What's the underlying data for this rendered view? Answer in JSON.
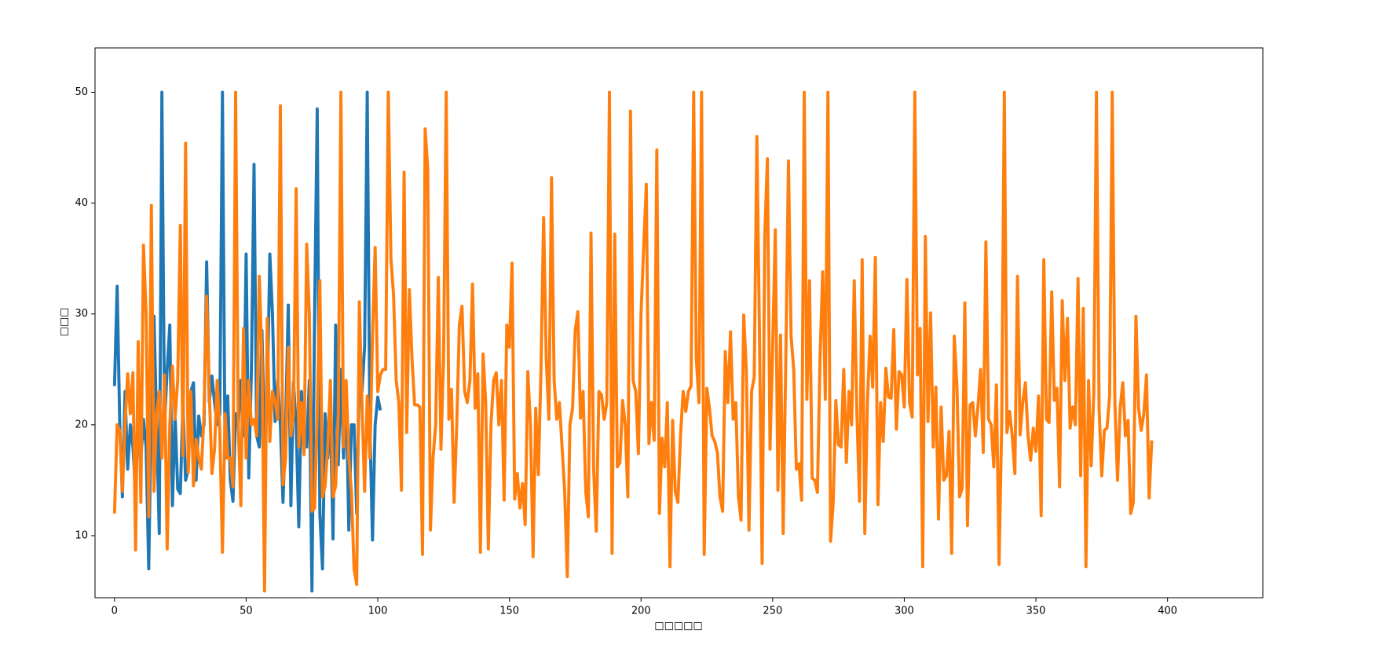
{
  "chart_data": {
    "type": "line",
    "xlabel": "□□□□□",
    "ylabel": "□□□",
    "xlim": [
      -7.4,
      436.2
    ],
    "xticks": [
      0,
      50,
      100,
      150,
      200,
      250,
      300,
      350,
      400
    ],
    "ylim": [
      4.4,
      54
    ],
    "yticks": [
      10,
      20,
      30,
      40,
      50
    ],
    "series": [
      {
        "color": "#1f77b4",
        "values": [
          23.5,
          32.5,
          20,
          13.5,
          23,
          16,
          20,
          18,
          14,
          20,
          17,
          20.5,
          18,
          7,
          22,
          29.8,
          20,
          10.2,
          50,
          20,
          25,
          29,
          12.7,
          21,
          14.2,
          13.8,
          22,
          15,
          16,
          23,
          23.8,
          15,
          20.8,
          19,
          20,
          34.7,
          22,
          24.4,
          22,
          20,
          21,
          50,
          17,
          22.6,
          15,
          13.1,
          21,
          20,
          24,
          19,
          35.4,
          15.2,
          25,
          43.5,
          19,
          18,
          28.5,
          18,
          22,
          35.4,
          30,
          20.3,
          24,
          20,
          13,
          20,
          30.8,
          12.7,
          23.8,
          20,
          10.8,
          23,
          19,
          18,
          24,
          5,
          30,
          48.5,
          12,
          7,
          21,
          17,
          21,
          9.7,
          29,
          16.4,
          25,
          17,
          23.3,
          10.5,
          20,
          20,
          12,
          24,
          23,
          27,
          50,
          20,
          9.6,
          20,
          22.5,
          21.3
        ]
      },
      {
        "color": "#ff7f0e",
        "values": [
          12,
          20,
          19.5,
          14,
          20,
          24.6,
          21,
          24.7,
          8.7,
          27.5,
          13,
          36.2,
          30,
          11.7,
          39.8,
          14,
          21,
          23,
          17,
          24.5,
          8.8,
          20,
          25.3,
          20.5,
          24,
          38,
          17.2,
          45.4,
          15.7,
          23,
          14.5,
          18.7,
          17,
          16,
          21,
          31.6,
          23,
          15.6,
          17.8,
          24,
          19.5,
          8.5,
          21,
          17,
          17,
          14.4,
          50,
          20,
          12.7,
          28.7,
          17,
          24,
          20,
          20.5,
          19,
          33.4,
          26,
          5,
          29.6,
          18.5,
          23,
          22,
          20.5,
          48.8,
          14.6,
          17,
          27,
          19,
          21,
          41.3,
          18,
          22,
          17.3,
          36.3,
          30,
          12.2,
          12.5,
          21,
          33,
          13.5,
          14.5,
          18,
          24,
          13.5,
          14.5,
          21,
          50,
          18,
          24,
          17,
          14,
          7,
          5.6,
          31.1,
          22,
          14,
          22.6,
          17,
          28,
          36,
          23,
          24.5,
          25,
          25,
          50,
          35,
          31.7,
          24,
          22,
          14.1,
          42.8,
          19.3,
          32.2,
          26,
          21.8,
          21.8,
          21.6,
          8.3,
          46.7,
          43,
          10.5,
          17,
          20,
          33.3,
          17.8,
          26,
          50,
          20.5,
          23.2,
          13,
          20,
          29,
          30.7,
          23,
          22,
          24,
          32.7,
          21.5,
          24.6,
          8.5,
          26.4,
          22,
          8.8,
          20,
          24,
          24.7,
          20,
          24,
          13.2,
          29,
          27,
          34.6,
          13.3,
          15.6,
          12.5,
          14.7,
          11,
          24.8,
          20,
          8.1,
          21.5,
          15.5,
          25,
          38.7,
          26,
          20.5,
          42.3,
          24,
          20.5,
          22,
          18,
          14,
          6.3,
          20,
          21.5,
          28.5,
          30.2,
          20.6,
          23,
          14,
          11.7,
          37.3,
          16,
          10.4,
          23,
          22.7,
          20.5,
          22,
          50,
          8.4,
          37.2,
          16.2,
          16.6,
          22.2,
          20,
          13.5,
          48.3,
          24,
          23,
          17.4,
          30,
          36,
          41.7,
          18.3,
          22,
          18.6,
          44.8,
          12,
          18.8,
          16.2,
          22,
          7.2,
          20.4,
          14,
          13,
          19,
          23,
          21.2,
          23,
          23.5,
          50,
          26,
          22,
          50,
          8.3,
          23.3,
          21.5,
          19,
          18.5,
          17.5,
          13.5,
          12.2,
          26.6,
          22,
          28.4,
          20.5,
          22,
          13.5,
          11.4,
          29.9,
          25,
          10.5,
          23,
          24.3,
          46,
          28,
          7.5,
          37,
          44,
          17.8,
          27,
          37.6,
          14.1,
          28.1,
          10.2,
          26,
          43.8,
          28,
          25,
          16,
          16.5,
          13.2,
          50,
          22.3,
          33,
          15.2,
          15,
          13.9,
          26,
          33.8,
          22.3,
          50,
          9.5,
          13,
          22.2,
          18.2,
          18,
          25,
          16.6,
          23,
          20,
          33,
          21,
          13.1,
          34.9,
          10.2,
          22,
          28,
          23.4,
          35.1,
          12.8,
          22,
          18.5,
          25.1,
          22.5,
          22.4,
          28.6,
          19.6,
          24.8,
          24.5,
          21.6,
          33.1,
          22,
          20.7,
          50,
          24.5,
          28.7,
          7.2,
          37,
          20.3,
          30.1,
          18,
          23.4,
          11.5,
          21.6,
          15,
          15.4,
          19.4,
          8.4,
          28,
          23.5,
          13.5,
          14.3,
          31,
          10.9,
          21.8,
          22,
          19,
          21.7,
          25,
          17.5,
          36.5,
          20.5,
          20,
          16.2,
          23.6,
          7.4,
          20,
          50,
          19.3,
          21.2,
          19,
          15.6,
          33.4,
          19.1,
          22,
          23.8,
          19,
          16.8,
          19.7,
          17.6,
          22.6,
          11.8,
          34.9,
          20.5,
          20.2,
          32,
          22.2,
          23.3,
          14.4,
          31.2,
          24,
          29.6,
          19.7,
          21.6,
          20,
          33.2,
          15.4,
          30.5,
          7.2,
          24,
          16.3,
          23,
          50,
          21.5,
          15.4,
          19.5,
          19.7,
          22.6,
          50,
          22,
          15,
          21.5,
          23.8,
          19,
          20.4,
          12,
          13,
          29.8,
          21.5,
          19.5,
          21,
          24.5,
          13.4,
          18.6
        ]
      }
    ]
  }
}
